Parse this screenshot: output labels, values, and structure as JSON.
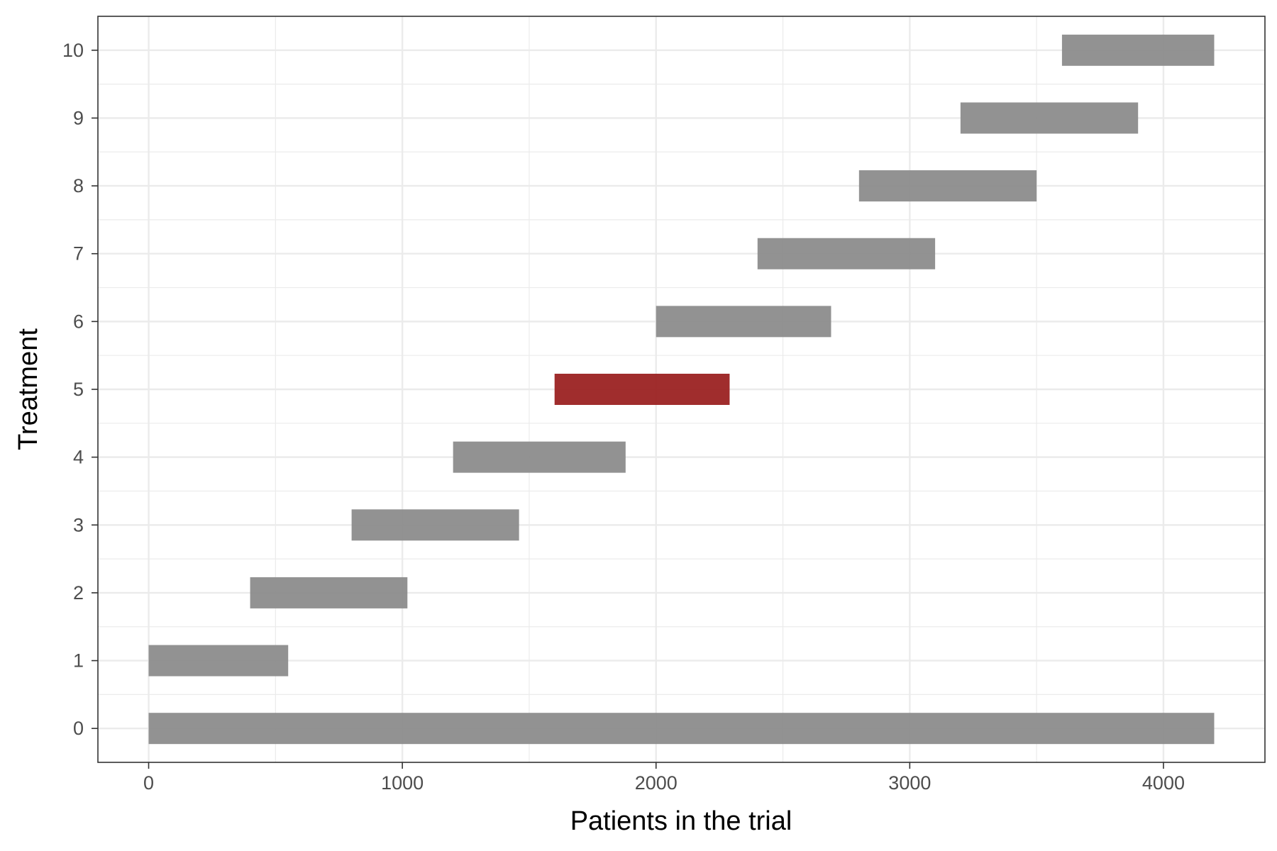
{
  "chart_data": {
    "type": "bar",
    "orientation": "horizontal-range",
    "xlabel": "Patients in the trial",
    "ylabel": "Treatment",
    "xlim": [
      -200,
      4400
    ],
    "ylim": [
      -0.5,
      10.5
    ],
    "x_ticks": [
      0,
      1000,
      2000,
      3000,
      4000
    ],
    "y_ticks": [
      0,
      1,
      2,
      3,
      4,
      5,
      6,
      7,
      8,
      9,
      10
    ],
    "grid": true,
    "colors": {
      "default": "#8c8c8c",
      "highlight": "#9b2222"
    },
    "bars": [
      {
        "treatment": 0,
        "start": 0,
        "end": 4200,
        "highlight": false
      },
      {
        "treatment": 1,
        "start": 0,
        "end": 550,
        "highlight": false
      },
      {
        "treatment": 2,
        "start": 400,
        "end": 1020,
        "highlight": false
      },
      {
        "treatment": 3,
        "start": 800,
        "end": 1460,
        "highlight": false
      },
      {
        "treatment": 4,
        "start": 1200,
        "end": 1880,
        "highlight": false
      },
      {
        "treatment": 5,
        "start": 1600,
        "end": 2290,
        "highlight": true
      },
      {
        "treatment": 6,
        "start": 2000,
        "end": 2690,
        "highlight": false
      },
      {
        "treatment": 7,
        "start": 2400,
        "end": 3100,
        "highlight": false
      },
      {
        "treatment": 8,
        "start": 2800,
        "end": 3500,
        "highlight": false
      },
      {
        "treatment": 9,
        "start": 3200,
        "end": 3900,
        "highlight": false
      },
      {
        "treatment": 10,
        "start": 3600,
        "end": 4200,
        "highlight": false
      }
    ]
  }
}
